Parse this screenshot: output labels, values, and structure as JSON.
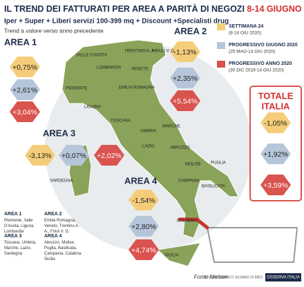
{
  "header": {
    "title": "IL TREND DEI FATTURATI PER AREA A PARITÀ DI NEGOZI",
    "title_dates": "8-14 GIUGNO 2020",
    "subtitle": "Iper + Super + Liberi servizi 100-399 mq + Discount +Specialisti drug",
    "note": "Trend a valore verso anno precedente"
  },
  "legend": [
    {
      "label": "SETTIMANA 24",
      "period": "(8-14 GIU 2020)"
    },
    {
      "label": "PROGRESSIVO GIUGNO 2020",
      "period": "(25 MAG-14 GIU 2020)"
    },
    {
      "label": "PROGRESSIVO ANNO 2020",
      "period": "(30 DIC 2019-14 GIU 2020)"
    }
  ],
  "areas": [
    {
      "name": "AREA 1",
      "values": [
        "+0,75%",
        "+2,61%",
        "+3,04%"
      ]
    },
    {
      "name": "AREA 2",
      "values": [
        "-1,13%",
        "+2,35%",
        "+5,54%"
      ]
    },
    {
      "name": "AREA 3",
      "values": [
        "-3,13%",
        "+0,07%",
        "+2,02%"
      ]
    },
    {
      "name": "AREA 4",
      "values": [
        "-1,54%",
        "+2,80%",
        "+4,74%"
      ]
    }
  ],
  "total": {
    "title_lines": [
      "TOTALE",
      "ITALIA"
    ],
    "values": [
      "-1,05%",
      "+1,92%",
      "+3,59%"
    ]
  },
  "regions": [
    "VALLE D'AOSTA",
    "PIEMONTE",
    "LOMBARDIA",
    "LIGURIA",
    "TRENTINO A. A.",
    "FRIULI V. G.",
    "VENETO",
    "EMILIA ROMAGNA",
    "TOSCANA",
    "UMBRIA",
    "MARCHE",
    "LAZIO",
    "SARDEGNA",
    "ABRUZZO",
    "MOLISE",
    "PUGLIA",
    "CAMPANIA",
    "BASILICATA",
    "CALABRIA",
    "SICILIA"
  ],
  "footer": {
    "areas": [
      {
        "name": "AREA 1",
        "regions": "Piemonte, Valle D'Aosta, Liguria, Lombardia"
      },
      {
        "name": "AREA 2",
        "regions": "Emilia Romagna, Veneto, Trentino A. A., Friuli V. G."
      },
      {
        "name": "AREA 3",
        "regions": "Toscana, Umbria, Marche, Lazio, Sardegna"
      },
      {
        "name": "AREA 4",
        "regions": "Abruzzo, Molise, Puglia, Basilicata, Campania, Calabria, Sicilia"
      }
    ],
    "source": "Fonte Nielsen",
    "credit": "STUDIO GRAFICO SILVANO DI MEO",
    "logo": "OSSERVA ITALIA"
  }
}
